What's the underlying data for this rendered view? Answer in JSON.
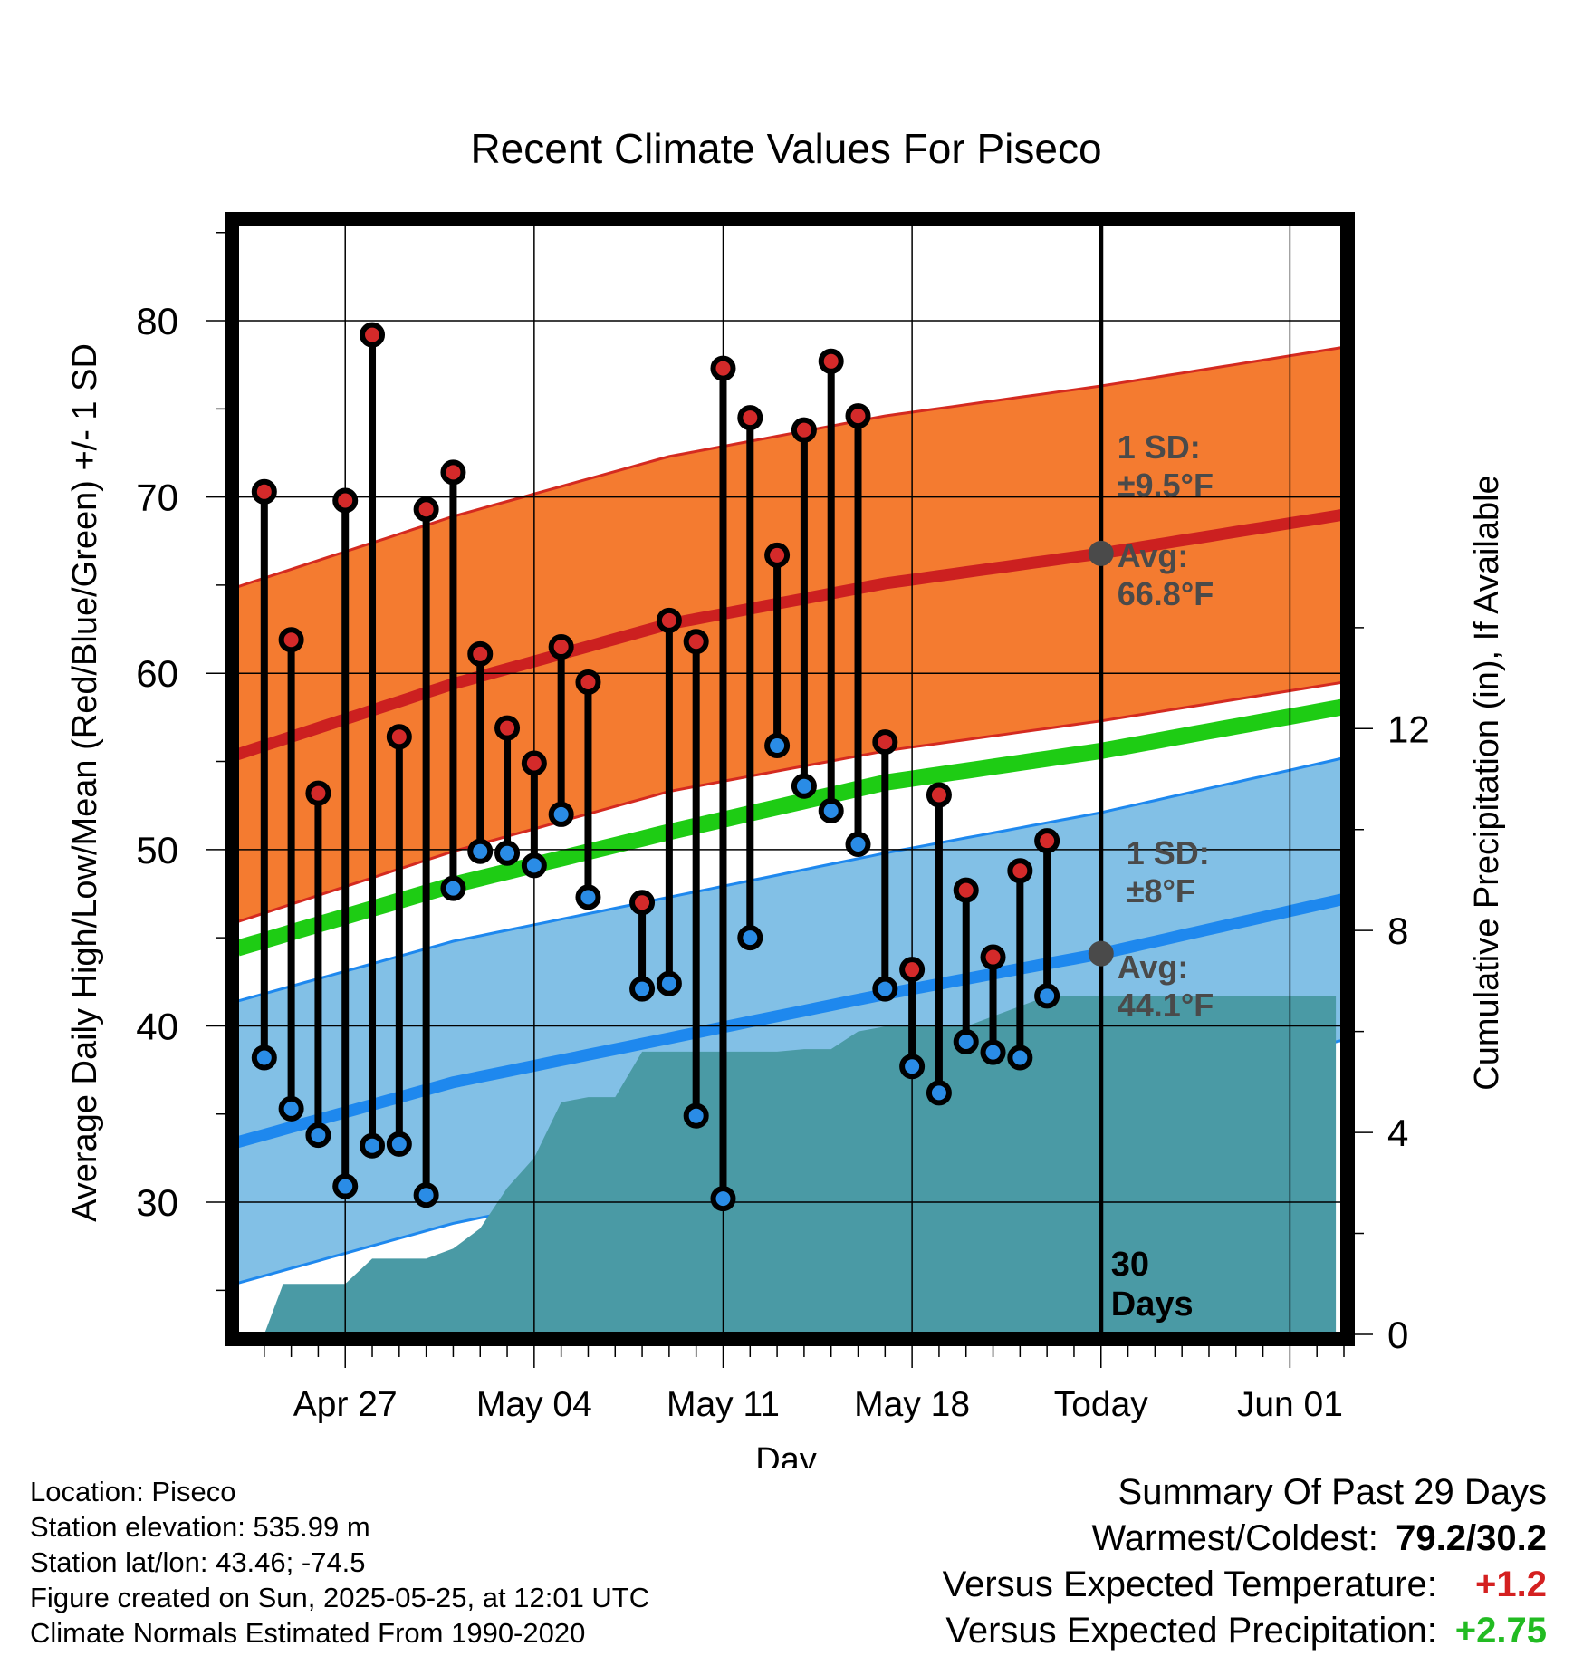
{
  "chart_data": {
    "type": "line",
    "title": "Recent Climate Values For Piseco",
    "xlabel": "Day",
    "ylabel": "Average Daily High/Low/Mean (Red/Blue/Green) +/- 1 SD",
    "y2label": "Cumulative Precipitation (in), If Available",
    "x_ticks": [
      {
        "day": 4,
        "label": "Apr 27"
      },
      {
        "day": 11,
        "label": "May 04"
      },
      {
        "day": 18,
        "label": "May 11"
      },
      {
        "day": 25,
        "label": "May 18"
      },
      {
        "day": 32,
        "label": "Today"
      },
      {
        "day": 39,
        "label": "Jun 01"
      }
    ],
    "xlim": [
      "2025-04-23",
      "2025-06-03"
    ],
    "ylim": [
      22.5,
      85.5
    ],
    "y_ticks": [
      30,
      40,
      50,
      60,
      70,
      80
    ],
    "y2lim": [
      0,
      22
    ],
    "y2_ticks": [
      0,
      4,
      8,
      12
    ],
    "grid": true,
    "today_marker": {
      "day": 32,
      "label": "30 Days"
    },
    "daily_obs": [
      {
        "date": "2025-04-24",
        "high": 70.3,
        "low": 38.2
      },
      {
        "date": "2025-04-25",
        "high": 61.9,
        "low": 35.3
      },
      {
        "date": "2025-04-26",
        "high": 53.2,
        "low": 33.8
      },
      {
        "date": "2025-04-27",
        "high": 69.8,
        "low": 30.9
      },
      {
        "date": "2025-04-28",
        "high": 79.2,
        "low": 33.2
      },
      {
        "date": "2025-04-29",
        "high": 56.4,
        "low": 33.3
      },
      {
        "date": "2025-04-30",
        "high": 69.3,
        "low": 30.4
      },
      {
        "date": "2025-05-01",
        "high": 71.4,
        "low": 47.8
      },
      {
        "date": "2025-05-02",
        "high": 61.1,
        "low": 49.9
      },
      {
        "date": "2025-05-03",
        "high": 56.9,
        "low": 49.8
      },
      {
        "date": "2025-05-04",
        "high": 54.9,
        "low": 49.1
      },
      {
        "date": "2025-05-05",
        "high": 61.5,
        "low": 52.0
      },
      {
        "date": "2025-05-06",
        "high": 59.5,
        "low": 47.3
      },
      {
        "date": "2025-05-08",
        "high": 47.0,
        "low": 42.1
      },
      {
        "date": "2025-05-09",
        "high": 63.0,
        "low": 42.4
      },
      {
        "date": "2025-05-10",
        "high": 61.8,
        "low": 34.9
      },
      {
        "date": "2025-05-11",
        "high": 77.3,
        "low": 30.2
      },
      {
        "date": "2025-05-12",
        "high": 74.5,
        "low": 45.0
      },
      {
        "date": "2025-05-13",
        "high": 66.7,
        "low": 55.9
      },
      {
        "date": "2025-05-14",
        "high": 73.8,
        "low": 53.6
      },
      {
        "date": "2025-05-15",
        "high": 77.7,
        "low": 52.2
      },
      {
        "date": "2025-05-16",
        "high": 74.6,
        "low": 50.3
      },
      {
        "date": "2025-05-17",
        "high": 56.1,
        "low": 42.1
      },
      {
        "date": "2025-05-18",
        "high": 43.2,
        "low": 37.7
      },
      {
        "date": "2025-05-19",
        "high": 53.1,
        "low": 36.2
      },
      {
        "date": "2025-05-20",
        "high": 47.7,
        "low": 39.1
      },
      {
        "date": "2025-05-21",
        "high": 43.9,
        "low": 38.5
      },
      {
        "date": "2025-05-22",
        "high": 48.8,
        "low": 38.2
      },
      {
        "date": "2025-05-23",
        "high": 50.5,
        "low": 41.7
      }
    ],
    "normals": {
      "days": [
        "2025-04-23",
        "2025-05-01",
        "2025-05-09",
        "2025-05-17",
        "2025-05-25",
        "2025-06-03"
      ],
      "high_avg": [
        55.4,
        59.4,
        62.8,
        65.1,
        66.8,
        69.0
      ],
      "high_sd": 9.5,
      "low_avg": [
        33.4,
        36.8,
        39.3,
        41.8,
        44.1,
        47.2
      ],
      "low_sd": 8,
      "mean_avg": [
        44.4,
        48.0,
        51.0,
        53.8,
        55.6,
        58.1
      ]
    },
    "precip_cumulative": [
      {
        "day": 1.0,
        "value": 0.0
      },
      {
        "day": 1.7,
        "value": 1.0
      },
      {
        "day": 3.0,
        "value": 1.0
      },
      {
        "day": 4.0,
        "value": 1.0
      },
      {
        "day": 5.0,
        "value": 1.5
      },
      {
        "day": 7.0,
        "value": 1.5
      },
      {
        "day": 8.0,
        "value": 1.7
      },
      {
        "day": 9.0,
        "value": 2.1
      },
      {
        "day": 10.0,
        "value": 2.9
      },
      {
        "day": 11.0,
        "value": 3.5
      },
      {
        "day": 12.0,
        "value": 4.6
      },
      {
        "day": 13.0,
        "value": 4.7
      },
      {
        "day": 14.0,
        "value": 4.7
      },
      {
        "day": 15.0,
        "value": 5.6
      },
      {
        "day": 16.0,
        "value": 5.6
      },
      {
        "day": 20.0,
        "value": 5.6
      },
      {
        "day": 21.0,
        "value": 5.65
      },
      {
        "day": 22.0,
        "value": 5.65
      },
      {
        "day": 23.0,
        "value": 6.0
      },
      {
        "day": 24.0,
        "value": 6.1
      },
      {
        "day": 25.0,
        "value": 6.1
      },
      {
        "day": 26.0,
        "value": 6.1
      },
      {
        "day": 27.0,
        "value": 6.1
      },
      {
        "day": 28.0,
        "value": 6.3
      },
      {
        "day": 29.0,
        "value": 6.5
      },
      {
        "day": 30.0,
        "value": 6.7
      },
      {
        "day": 32.0,
        "value": 6.7
      },
      {
        "day": 40.7,
        "value": 6.7
      }
    ],
    "annotations": {
      "high_sd": [
        "1 SD:",
        "±9.5°F"
      ],
      "high_avg": [
        "Avg:",
        "66.8°F"
      ],
      "low_sd": [
        "1 SD:",
        "±8°F"
      ],
      "low_avg": [
        "Avg:",
        "44.1°F"
      ]
    },
    "colors": {
      "high_band": "#f47b30",
      "high_line": "#cc2020",
      "low_band": "#82c0e6",
      "low_line": "#1e88ee",
      "mean_line": "#1ecc14",
      "precip": "#4a9aa5",
      "annotation": "#4a4a4a",
      "warm_text": "#d42020",
      "wet_text": "#22bb22"
    }
  },
  "footer": {
    "lines": [
      "Location: Piseco",
      "Station elevation: 535.99 m",
      "Station lat/lon: 43.46; -74.5",
      "Figure created on Sun, 2025-05-25, at 12:01 UTC",
      "Climate Normals Estimated From 1990-2020"
    ]
  },
  "summary": {
    "heading": "Summary Of Past 29 Days",
    "warmest_label": "Warmest/Coldest:",
    "warmest_value": "79.2/30.2",
    "temp_label": "Versus Expected Temperature:",
    "temp_value": "+1.2",
    "precip_label": "Versus Expected Precipitation:",
    "precip_value": "+2.75"
  }
}
